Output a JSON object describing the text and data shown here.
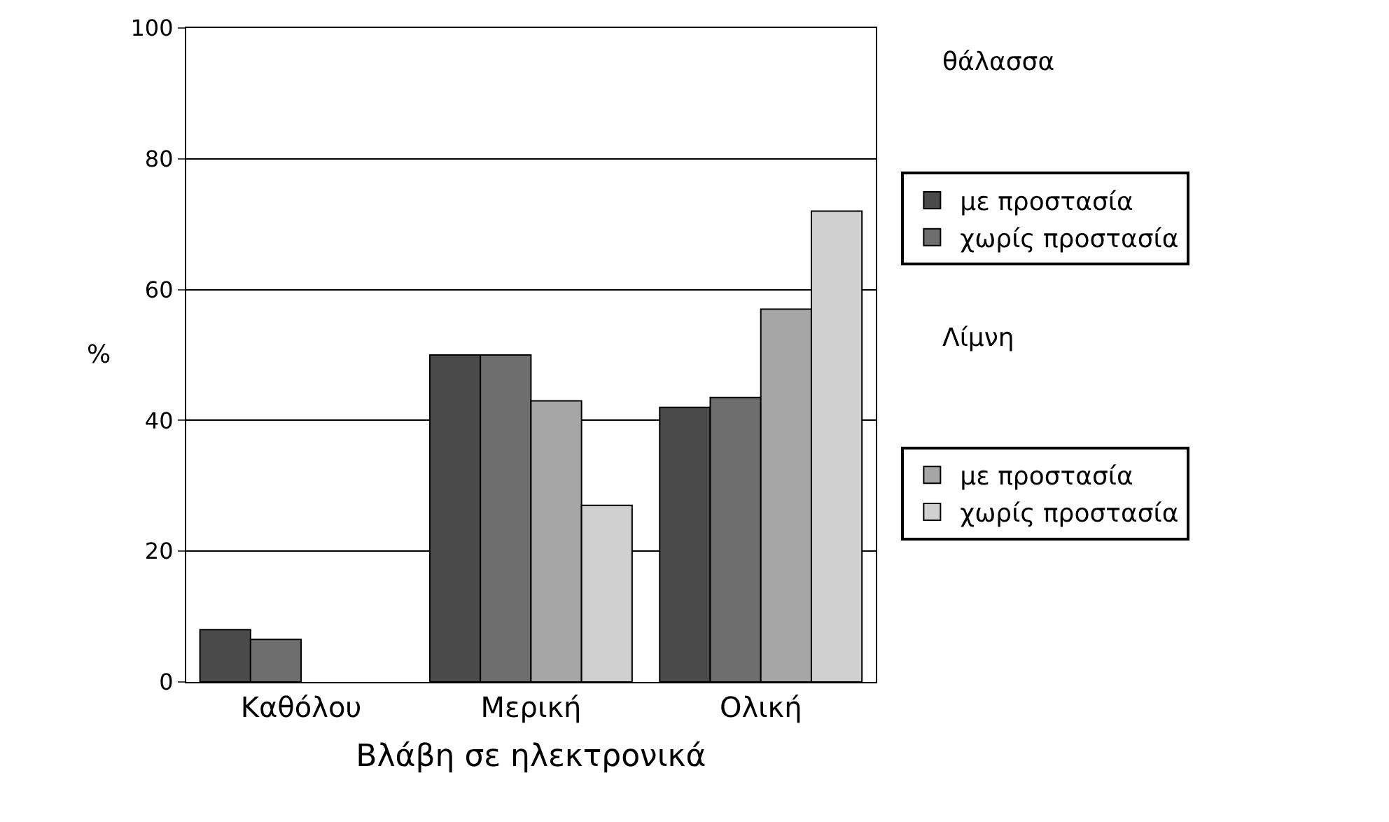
{
  "chart_data": {
    "type": "bar",
    "xlabel": "Βλάβη σε ηλεκτρονικά",
    "ylabel": "%",
    "categories": [
      "Καθόλου",
      "Μερική",
      "Ολική"
    ],
    "series": [
      {
        "name": "με προστασία",
        "color": "#4a4a4a",
        "values": [
          8,
          50,
          42
        ]
      },
      {
        "name": "χωρίς προστασία",
        "color": "#6e6e6e",
        "values": [
          6.5,
          50,
          43.5
        ]
      },
      {
        "name": "με προστασία",
        "color": "#a6a6a6",
        "values": [
          null,
          43,
          57
        ]
      },
      {
        "name": "χωρίς προστασία",
        "color": "#d0d0d0",
        "values": [
          null,
          27,
          72
        ]
      }
    ],
    "annotations": [
      "θάλασσα",
      "Λίμνη"
    ],
    "ylim": [
      0,
      100
    ],
    "yticks": [
      0,
      20,
      40,
      60,
      80,
      100
    ],
    "grid": "y",
    "legend": "right"
  }
}
